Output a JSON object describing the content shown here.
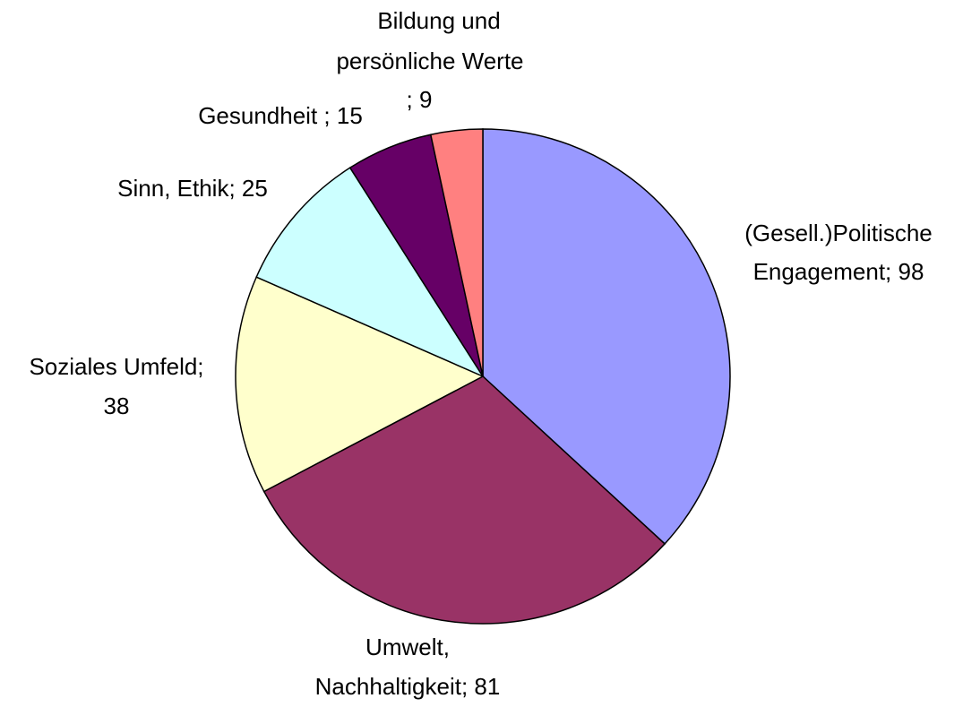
{
  "chart_data": {
    "type": "pie",
    "values": [
      98,
      81,
      38,
      25,
      15,
      9
    ],
    "value_labels": [
      [
        "(Gesell.)Politische",
        "Engagement; 98"
      ],
      [
        "Umwelt,",
        "Nachhaltigkeit; 81"
      ],
      [
        "Soziales Umfeld;",
        "38"
      ],
      [
        "Sinn, Ethik; 25"
      ],
      [
        "Gesundheit ; 15"
      ],
      [
        "Bildung und",
        "persönliche Werte",
        "; 9"
      ]
    ],
    "colors": [
      "#9999ff",
      "#993366",
      "#ffffcc",
      "#ccffff",
      "#660066",
      "#ff8080"
    ]
  }
}
